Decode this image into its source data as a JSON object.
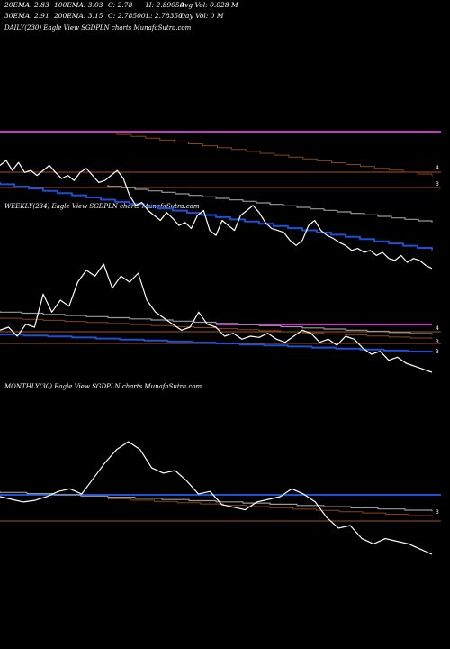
{
  "header": {
    "row1": [
      {
        "label": "20EMA: 2.83"
      },
      {
        "label": "100EMA: 3.03"
      },
      {
        "label": "C: 2.78"
      },
      {
        "label": "H: 2.89050"
      },
      {
        "label": "Avg Vol: 0.028  M"
      }
    ],
    "row2": [
      {
        "label": "30EMA: 2.91"
      },
      {
        "label": "200EMA: 3.15"
      },
      {
        "label": "C: 2.78500"
      },
      {
        "label": "L: 2.78350"
      },
      {
        "label": "Day Vol: 0  M"
      }
    ]
  },
  "panels": {
    "daily_title": "DAILY(230) Eagle  View  SGDPLN  charts MunafaSutra.com",
    "weekly_title": "WEEKLY(234) Eagle  View  SGDPLN  charts MunafaSutra.com",
    "monthly_title": "MONTHLY(30) Eagle  View  SGDPLN  charts MunafaSutra.com"
  },
  "colors": {
    "price": "#ffffff",
    "ema_fast": "#1f4fd6",
    "ema_slow_grey": "#9a9a9a",
    "ema_brown": "#8b4513",
    "ema_magenta": "#cc33cc",
    "level_line": "#a0522d"
  },
  "chart_data": [
    {
      "type": "line",
      "name": "daily",
      "y_tick_labels": [
        "4",
        "3"
      ],
      "price": [
        3.35,
        3.4,
        3.3,
        3.38,
        3.28,
        3.3,
        3.25,
        3.3,
        3.35,
        3.28,
        3.22,
        3.25,
        3.2,
        3.28,
        3.32,
        3.25,
        3.18,
        3.2,
        3.25,
        3.3,
        3.22,
        3.05,
        2.95,
        2.98,
        2.9,
        2.85,
        2.8,
        2.88,
        2.82,
        2.75,
        2.78,
        2.72,
        2.85,
        2.9,
        2.7,
        2.65,
        2.8,
        2.75,
        2.7,
        2.85,
        2.9,
        2.95,
        2.88,
        2.78,
        2.72,
        2.7,
        2.68,
        2.6,
        2.55,
        2.6,
        2.75,
        2.8,
        2.7,
        2.65,
        2.62,
        2.58,
        2.55,
        2.5,
        2.52,
        2.48,
        2.5,
        2.45,
        2.48,
        2.42,
        2.4,
        2.45,
        2.38,
        2.42,
        2.4,
        2.35,
        2.32
      ]
    },
    {
      "type": "line",
      "name": "weekly",
      "y_tick_labels": [
        "4",
        "3",
        "3"
      ],
      "price": [
        3.0,
        3.05,
        2.9,
        3.1,
        3.05,
        3.6,
        3.3,
        3.5,
        3.4,
        3.8,
        4.0,
        3.9,
        4.1,
        3.7,
        3.9,
        3.8,
        3.95,
        3.5,
        3.3,
        3.2,
        3.1,
        3.0,
        3.05,
        3.3,
        3.1,
        3.05,
        2.9,
        2.95,
        2.85,
        2.9,
        2.88,
        2.95,
        2.85,
        2.8,
        2.9,
        3.0,
        2.95,
        2.8,
        2.85,
        2.75,
        2.9,
        2.85,
        2.7,
        2.6,
        2.65,
        2.5,
        2.55,
        2.45,
        2.4,
        2.35,
        2.3
      ]
    },
    {
      "type": "line",
      "name": "monthly",
      "y_tick_labels": [
        "3"
      ],
      "price": [
        2.95,
        2.9,
        2.85,
        2.88,
        2.95,
        3.05,
        3.1,
        3.0,
        3.3,
        3.6,
        3.85,
        4.0,
        3.85,
        3.5,
        3.4,
        3.45,
        3.25,
        3.0,
        3.05,
        2.8,
        2.75,
        2.7,
        2.85,
        2.9,
        2.95,
        3.1,
        3.0,
        2.85,
        2.55,
        2.35,
        2.4,
        2.15,
        2.05,
        2.15,
        2.1,
        2.05,
        1.95,
        1.85
      ]
    }
  ]
}
